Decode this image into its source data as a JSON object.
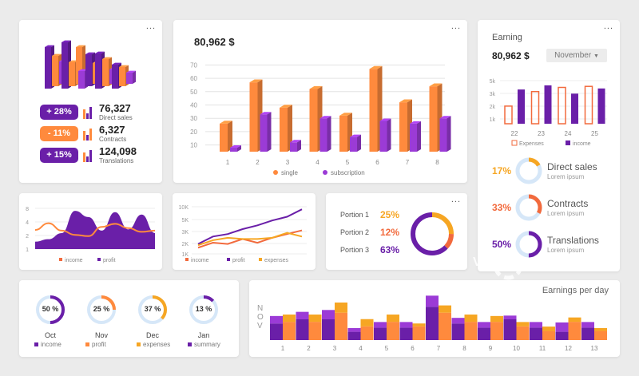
{
  "colors": {
    "orange": "#ff8a3d",
    "purple": "#6a1fa8",
    "violet": "#9b3bd6",
    "yellow": "#f6a623",
    "red": "#f26a3d",
    "light": "#d6e7f8"
  },
  "menu_dots": "...",
  "top_left": {
    "stats": [
      {
        "badge": "+ 28%",
        "value": "76,327",
        "label": "Direct sales",
        "color": "purple"
      },
      {
        "badge": "- 11%",
        "value": "6,327",
        "label": "Contracts",
        "color": "orange"
      },
      {
        "badge": "+ 15%",
        "value": "124,098",
        "label": "Translations",
        "color": "purple"
      }
    ]
  },
  "main_chart": {
    "title": "80,962 $",
    "chart_data": {
      "type": "bar",
      "categories": [
        "1",
        "2",
        "3",
        "4",
        "5",
        "6",
        "7",
        "8"
      ],
      "series": [
        {
          "name": "single",
          "values": [
            26,
            57,
            38,
            52,
            32,
            67,
            42,
            54
          ]
        },
        {
          "name": "subscription",
          "values": [
            8,
            33,
            12,
            30,
            16,
            28,
            26,
            30
          ]
        }
      ],
      "yticks": [
        10,
        20,
        30,
        40,
        50,
        60,
        70
      ],
      "ylim": [
        5,
        75
      ]
    }
  },
  "earning": {
    "title": "Earning",
    "amount": "80,962 $",
    "month": "November",
    "chart_data": {
      "type": "bar",
      "categories": [
        "22",
        "23",
        "24",
        "25"
      ],
      "series": [
        {
          "name": "Expenses",
          "values": [
            1.7,
            3.1,
            3.5,
            3.6
          ]
        },
        {
          "name": "income",
          "values": [
            3.3,
            3.7,
            2.9,
            3.4
          ]
        }
      ],
      "yticks": [
        "1k",
        "2k",
        "3k",
        "5k"
      ],
      "ylim": [
        0,
        4
      ]
    },
    "metrics": [
      {
        "percent": "17%",
        "title": "Direct sales",
        "sub": "Lorem ipsum",
        "value": 17,
        "color": "yellow"
      },
      {
        "percent": "33%",
        "title": "Contracts",
        "sub": "Lorem ipsum",
        "value": 33,
        "color": "red"
      },
      {
        "percent": "50%",
        "title": "Translations",
        "sub": "Lorem ipsum",
        "value": 50,
        "color": "purple"
      }
    ]
  },
  "area_chart": {
    "chart_data": {
      "type": "area",
      "yticks": [
        1,
        2,
        4,
        8
      ],
      "series": [
        {
          "name": "income",
          "values": [
            3.1,
            4.2,
            3.0,
            2.3,
            2.1,
            3.6,
            4.1,
            3.4,
            2.8,
            3.0
          ]
        },
        {
          "name": "profit",
          "values": [
            1.2,
            1.6,
            2.6,
            6.2,
            5.2,
            3.0,
            6.0,
            3.2,
            5.6,
            2.6
          ]
        }
      ]
    }
  },
  "line_chart": {
    "chart_data": {
      "type": "line",
      "yticks": [
        "1K",
        "2K",
        "3K",
        "5K",
        "10K"
      ],
      "series": [
        {
          "name": "income",
          "values": [
            1.0,
            1.8,
            1.6,
            2.4,
            1.8,
            2.6,
            3.2,
            3.8
          ]
        },
        {
          "name": "profit",
          "values": [
            1.6,
            2.8,
            3.2,
            4.0,
            4.6,
            5.4,
            6.0,
            7.2
          ]
        },
        {
          "name": "expenses",
          "values": [
            1.4,
            2.2,
            2.6,
            2.4,
            2.4,
            2.6,
            3.4,
            2.8
          ]
        }
      ]
    }
  },
  "portions": {
    "items": [
      {
        "label": "Portion 1",
        "value": "25%",
        "color": "yellow",
        "pct": 25
      },
      {
        "label": "Portion 2",
        "value": "12%",
        "color": "red",
        "pct": 12
      },
      {
        "label": "Portion 3",
        "value": "63%",
        "color": "purple",
        "pct": 63
      }
    ]
  },
  "monthly": [
    {
      "percent": "50 %",
      "month": "Oct",
      "legend": "income",
      "pct": 50,
      "color": "purple"
    },
    {
      "percent": "25 %",
      "month": "Nov",
      "legend": "profit",
      "pct": 25,
      "color": "orange"
    },
    {
      "percent": "37 %",
      "month": "Dec",
      "legend": "expenses",
      "pct": 37,
      "color": "yellow"
    },
    {
      "percent": "13 %",
      "month": "Jan",
      "legend": "summary",
      "pct": 13,
      "color": "purple"
    }
  ],
  "per_day": {
    "title": "Earnings per day",
    "side_label": "NOV",
    "chart_data": {
      "type": "bar",
      "categories": [
        "1",
        "2",
        "3",
        "4",
        "5",
        "6",
        "7",
        "8",
        "9",
        "10",
        "11",
        "12",
        "13"
      ],
      "series": [
        {
          "name": "purple",
          "values": [
            [
              4,
              4
            ],
            [
              5,
              4
            ],
            [
              5,
              5
            ],
            [
              2,
              2
            ],
            [
              3,
              3
            ],
            [
              3,
              3
            ],
            [
              8,
              6
            ],
            [
              4,
              3
            ],
            [
              3,
              3
            ],
            [
              5,
              2
            ],
            [
              3,
              3
            ],
            [
              2,
              5
            ],
            [
              3,
              3
            ]
          ]
        },
        {
          "name": "orange",
          "values": [
            [
              4,
              5
            ],
            [
              4,
              5
            ],
            [
              6,
              7
            ],
            [
              3,
              5
            ],
            [
              4,
              5
            ],
            [
              3,
              2
            ],
            [
              6,
              5
            ],
            [
              4,
              5
            ],
            [
              4,
              4
            ],
            [
              3,
              3
            ],
            [
              2,
              3
            ],
            [
              4,
              3
            ],
            [
              2,
              2
            ]
          ]
        }
      ]
    }
  },
  "watermark": {
    "logo": "VCG",
    "text": "VCG211331353452"
  }
}
